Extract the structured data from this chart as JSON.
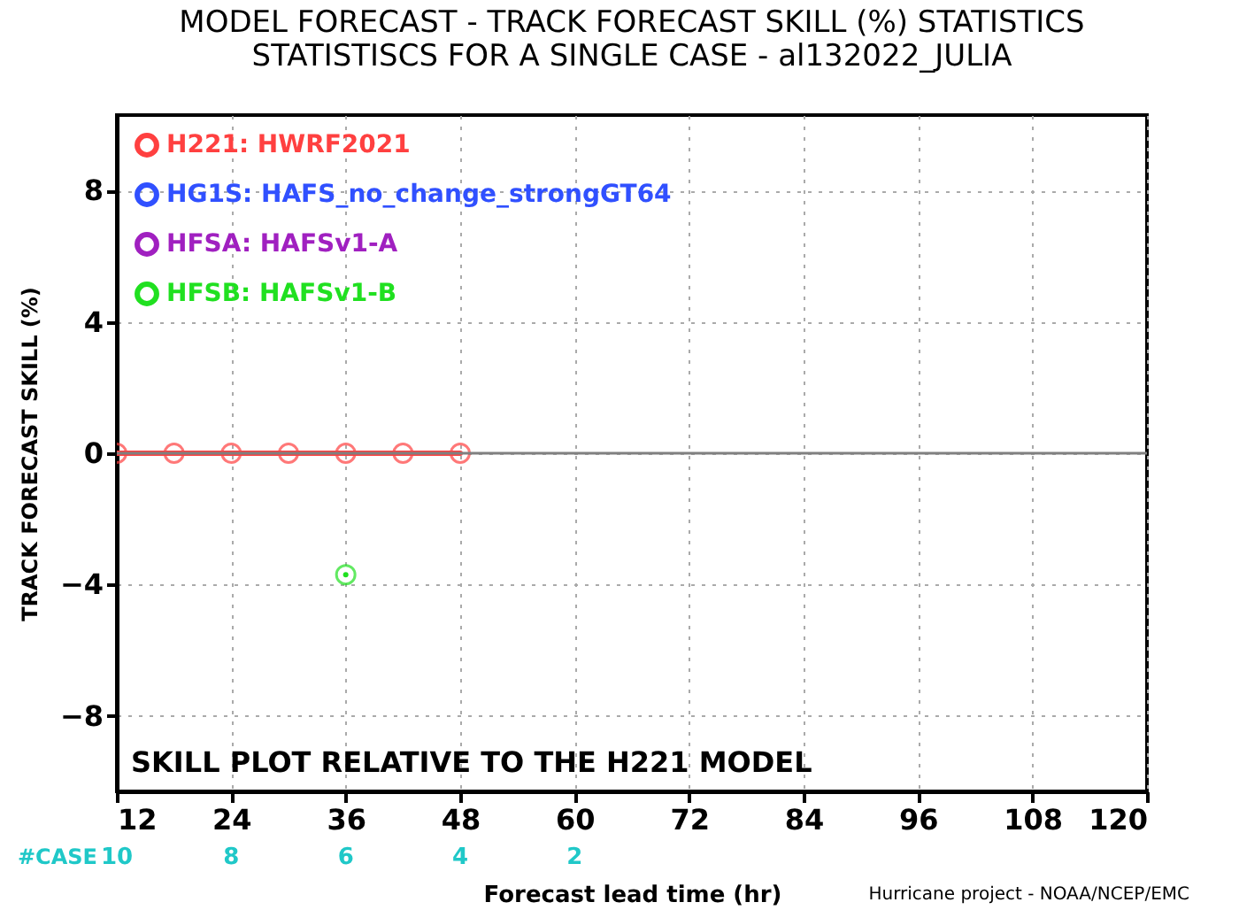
{
  "chart_data": {
    "type": "line",
    "title": "MODEL FORECAST - TRACK FORECAST SKILL (%) STATISTICS",
    "subtitle": "STATISTISCS FOR A SINGLE CASE - al132022_JULIA",
    "xlabel": "Forecast lead time (hr)",
    "ylabel": "TRACK FORECAST SKILL (%)",
    "x": [
      12,
      18,
      24,
      30,
      36,
      42,
      48
    ],
    "series": [
      {
        "name": "H221: HWRF2021",
        "color": "#ff4040",
        "values": [
          0,
          0,
          0,
          0,
          0,
          0,
          0
        ]
      },
      {
        "name": "HG1S: HAFS_no_change_strongGT64",
        "color": "#3050ff",
        "values": [
          null,
          null,
          null,
          null,
          null,
          null,
          null
        ]
      },
      {
        "name": "HFSA: HAFSv1-A",
        "color": "#a020c0",
        "values": [
          null,
          null,
          null,
          null,
          null,
          null,
          null
        ]
      },
      {
        "name": "HFSB: HAFSv1-B",
        "color": "#20e020",
        "values": [
          null,
          null,
          null,
          null,
          -3.7,
          null,
          null
        ]
      }
    ],
    "xlim": [
      12,
      120
    ],
    "xticks": [
      12,
      24,
      36,
      48,
      60,
      72,
      84,
      96,
      108,
      120
    ],
    "ylim": [
      -10.3,
      10.3
    ],
    "yticks": [
      -8,
      -4,
      0,
      4,
      8
    ],
    "ref_lines": [
      {
        "axis": "y",
        "value": 0,
        "color": "#808080"
      }
    ],
    "annotations": [
      "SKILL PLOT RELATIVE TO THE H221 MODEL",
      "#CASE",
      "10",
      "8",
      "6",
      "4",
      "2",
      "Hurricane project - NOAA/NCEP/EMC"
    ],
    "grid": true,
    "legend": "top left",
    "marker": "circle",
    "line_style": "solid"
  }
}
